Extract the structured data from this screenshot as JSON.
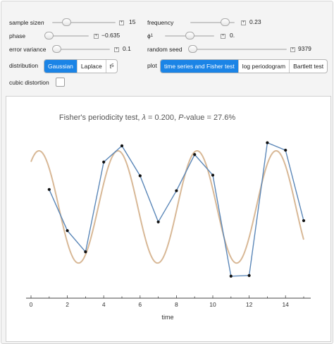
{
  "controls": {
    "sample_size": {
      "label_prefix": "sample size ",
      "label_var": "n",
      "value": "15",
      "fraction": 0.22
    },
    "frequency": {
      "label": "frequency",
      "value": "0.23",
      "fraction": 0.78
    },
    "phase": {
      "label": "phase",
      "value": "−0.635",
      "fraction": 0.08
    },
    "phi1": {
      "label_main": "ϕ",
      "label_sub": "1",
      "value": "0.",
      "fraction": 0.5
    },
    "error_variance": {
      "label": "error variance",
      "value": "0.1",
      "fraction": 0.0
    },
    "random_seed": {
      "label": "random seed",
      "value": "9379",
      "fraction": 0.02
    },
    "distribution": {
      "label": "distribution",
      "options": [
        "Gaussian",
        "Laplace",
        "t"
      ],
      "t_sub": "5",
      "selected": "Gaussian"
    },
    "plot": {
      "label": "plot",
      "options": [
        "time series and Fisher test",
        "log periodogram",
        "Bartlett test"
      ],
      "selected": "time series and Fisher test"
    },
    "cubic_distortion": {
      "label": "cubic distortion",
      "checked": false
    }
  },
  "chart_data": {
    "type": "line",
    "title_prefix": "Fisher's periodicity test, ",
    "title_lambda": "λ",
    "title_mid": " = 0.200, ",
    "title_p": "P",
    "title_suffix": "-value = 27.6%",
    "xlabel": "time",
    "xlim": [
      0,
      15
    ],
    "ylim": [
      -1.35,
      1.25
    ],
    "xticks": [
      0,
      2,
      4,
      6,
      8,
      10,
      12,
      14
    ],
    "series": [
      {
        "role": "observed",
        "color": "#5b87b8",
        "x": [
          1,
          2,
          3,
          4,
          5,
          6,
          7,
          8,
          9,
          10,
          11,
          12,
          13,
          14,
          15
        ],
        "y": [
          0.28,
          -0.38,
          -0.72,
          0.72,
          0.98,
          0.5,
          -0.24,
          0.26,
          0.84,
          0.51,
          -1.11,
          -1.1,
          1.03,
          0.91,
          -0.22
        ]
      },
      {
        "role": "fitted-sinusoid",
        "color": "#d8b896",
        "frequency": 0.23,
        "amplitude": 0.9,
        "phase": -0.635,
        "x_range": [
          0,
          15
        ]
      }
    ]
  }
}
